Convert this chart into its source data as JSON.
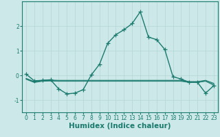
{
  "xlabel": "Humidex (Indice chaleur)",
  "background_color": "#cce8e8",
  "grid_color": "#b8d8d8",
  "line_color": "#1a7a6e",
  "x_values": [
    0,
    1,
    2,
    3,
    4,
    5,
    6,
    7,
    8,
    9,
    10,
    11,
    12,
    13,
    14,
    15,
    16,
    17,
    18,
    19,
    20,
    21,
    22,
    23
  ],
  "series_main": [
    0.05,
    -0.22,
    -0.2,
    -0.18,
    -0.55,
    -0.75,
    -0.72,
    -0.58,
    0.02,
    0.45,
    1.3,
    1.65,
    1.85,
    2.1,
    2.58,
    1.55,
    1.45,
    1.05,
    -0.05,
    -0.15,
    -0.28,
    -0.28,
    -0.72,
    -0.42
  ],
  "series_flat": [
    [
      -0.12,
      -0.25,
      -0.2,
      -0.19,
      -0.2,
      -0.2,
      -0.2,
      -0.2,
      -0.2,
      -0.2,
      -0.2,
      -0.2,
      -0.2,
      -0.2,
      -0.2,
      -0.2,
      -0.2,
      -0.2,
      -0.2,
      -0.2,
      -0.25,
      -0.25,
      -0.2,
      -0.32
    ],
    [
      -0.14,
      -0.27,
      -0.22,
      -0.21,
      -0.22,
      -0.22,
      -0.22,
      -0.22,
      -0.22,
      -0.22,
      -0.22,
      -0.22,
      -0.22,
      -0.22,
      -0.22,
      -0.22,
      -0.22,
      -0.22,
      -0.22,
      -0.22,
      -0.27,
      -0.27,
      -0.22,
      -0.36
    ],
    [
      -0.16,
      -0.29,
      -0.24,
      -0.23,
      -0.24,
      -0.24,
      -0.24,
      -0.24,
      -0.24,
      -0.24,
      -0.24,
      -0.24,
      -0.24,
      -0.24,
      -0.24,
      -0.24,
      -0.24,
      -0.24,
      -0.24,
      -0.24,
      -0.29,
      -0.29,
      -0.24,
      -0.4
    ]
  ],
  "ylim": [
    -1.5,
    3.0
  ],
  "xlim": [
    -0.5,
    23.5
  ],
  "yticks": [
    -1,
    0,
    1,
    2
  ],
  "xticks": [
    0,
    1,
    2,
    3,
    4,
    5,
    6,
    7,
    8,
    9,
    10,
    11,
    12,
    13,
    14,
    15,
    16,
    17,
    18,
    19,
    20,
    21,
    22,
    23
  ],
  "marker": "+",
  "markersize": 4,
  "linewidth": 1.0,
  "tick_fontsize": 5.5,
  "xlabel_fontsize": 7.5
}
